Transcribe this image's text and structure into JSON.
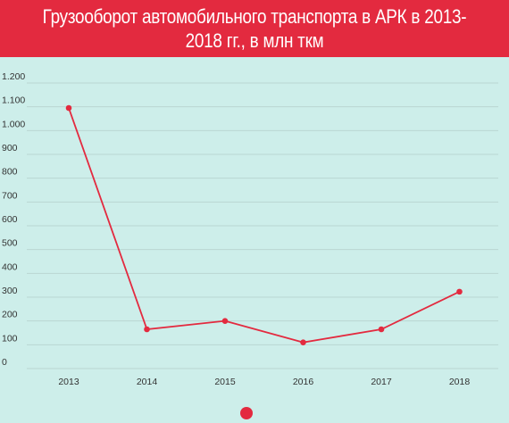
{
  "title": "Грузооборот автомобильного транспорта в АРК в 2013-2018 гг., в млн ткм",
  "colors": {
    "banner": "#e32a3f",
    "series": "#e32a3f",
    "background": "#cdeeea",
    "grid": "#b9d6d2"
  },
  "chart_data": {
    "type": "line",
    "title": "Грузооборот автомобильного транспорта в АРК в 2013-2018 гг., в млн ткм",
    "xlabel": "",
    "ylabel": "",
    "categories": [
      "2013",
      "2014",
      "2015",
      "2016",
      "2017",
      "2018"
    ],
    "series": [
      {
        "values": [
          1095,
          165,
          200,
          110,
          165,
          323
        ]
      }
    ],
    "ylim": [
      0,
      1200
    ],
    "yticks": [
      0,
      100,
      200,
      300,
      400,
      500,
      600,
      700,
      800,
      900,
      1000,
      1100,
      1200
    ],
    "ytick_labels": [
      "0",
      "100",
      "200",
      "300",
      "400",
      "500",
      "600",
      "700",
      "800",
      "900",
      "1.000",
      "1.100",
      "1.200"
    ],
    "grid": true,
    "legend": "bottom-center"
  }
}
